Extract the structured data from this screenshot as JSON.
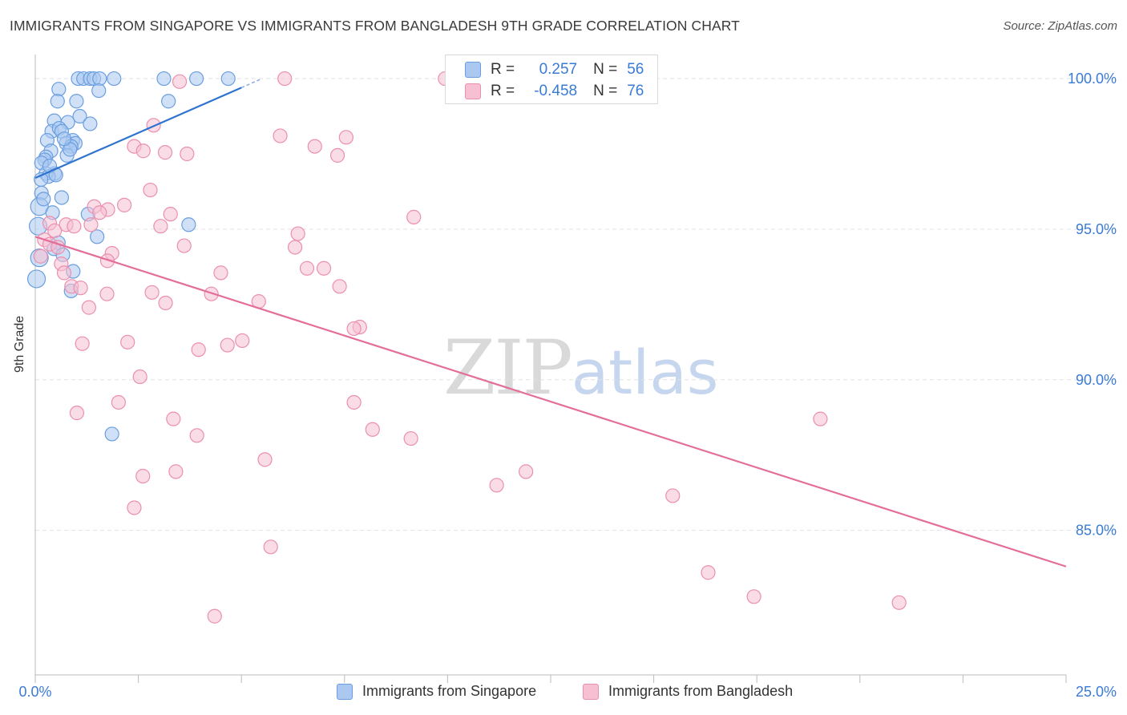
{
  "title": "IMMIGRANTS FROM SINGAPORE VS IMMIGRANTS FROM BANGLADESH 9TH GRADE CORRELATION CHART",
  "source": "Source: ZipAtlas.com",
  "watermark": {
    "zip": "ZIP",
    "atlas": "atlas"
  },
  "legend_stats": [
    {
      "r_label": "R =",
      "r_value": "0.257",
      "n_label": "N =",
      "n_value": "56"
    },
    {
      "r_label": "R =",
      "r_value": "-0.458",
      "n_label": "N =",
      "n_value": "76"
    }
  ],
  "chart_data": {
    "type": "scatter",
    "title": "IMMIGRANTS FROM SINGAPORE VS IMMIGRANTS FROM BANGLADESH 9TH GRADE CORRELATION CHART",
    "xlabel": "",
    "ylabel": "9th Grade",
    "xlim": [
      0,
      25
    ],
    "ylim": [
      80.2,
      100.8
    ],
    "x_tick_labels": [
      "0.0%",
      "25.0%"
    ],
    "y_ticks": [
      85,
      90,
      95,
      100
    ],
    "y_tick_labels": [
      "85.0%",
      "90.0%",
      "95.0%",
      "100.0%"
    ],
    "colors": {
      "singapore_fill": "#aac8f0",
      "singapore_stroke": "#6a9ee0",
      "singapore_line": "#2f73d0",
      "bangladesh_fill": "#f6c0d2",
      "bangladesh_stroke": "#eb8fae",
      "bangladesh_line": "#e36e99",
      "tick_label": "#3a7bd5",
      "grid": "#e2e2e2"
    },
    "series": [
      {
        "name": "Immigrants from Singapore",
        "r": 0.257,
        "n": 56,
        "trend": {
          "x": [
            0.0,
            5.0
          ],
          "y": [
            96.7,
            99.7
          ],
          "dash_x": [
            5.0,
            5.5
          ],
          "dash_y": [
            99.7,
            100.0
          ]
        },
        "points": [
          [
            1.04,
            100.0
          ],
          [
            1.17,
            100.0
          ],
          [
            1.33,
            100.0
          ],
          [
            1.42,
            100.0
          ],
          [
            1.56,
            100.0
          ],
          [
            1.91,
            100.0
          ],
          [
            3.12,
            100.0
          ],
          [
            3.91,
            100.0
          ],
          [
            4.68,
            100.0
          ],
          [
            1.54,
            99.6
          ],
          [
            0.57,
            99.65
          ],
          [
            0.54,
            99.25
          ],
          [
            1.0,
            99.25
          ],
          [
            3.23,
            99.25
          ],
          [
            1.08,
            98.75
          ],
          [
            0.46,
            98.6
          ],
          [
            0.79,
            98.55
          ],
          [
            1.33,
            98.5
          ],
          [
            0.4,
            98.25
          ],
          [
            0.29,
            97.95
          ],
          [
            0.91,
            97.95
          ],
          [
            0.58,
            98.35
          ],
          [
            0.64,
            98.25
          ],
          [
            0.75,
            97.85
          ],
          [
            0.97,
            97.85
          ],
          [
            0.87,
            97.75
          ],
          [
            0.38,
            97.6
          ],
          [
            0.77,
            97.45
          ],
          [
            0.84,
            97.65
          ],
          [
            0.26,
            97.4
          ],
          [
            0.23,
            97.3
          ],
          [
            0.15,
            97.2
          ],
          [
            0.47,
            96.85
          ],
          [
            0.26,
            96.85
          ],
          [
            0.32,
            96.75
          ],
          [
            0.14,
            96.65
          ],
          [
            0.15,
            96.2
          ],
          [
            0.64,
            96.05
          ],
          [
            0.1,
            95.75
          ],
          [
            0.42,
            95.55
          ],
          [
            1.28,
            95.5
          ],
          [
            3.72,
            95.15
          ],
          [
            1.5,
            94.75
          ],
          [
            0.07,
            95.1
          ],
          [
            0.56,
            94.55
          ],
          [
            0.45,
            94.35
          ],
          [
            0.67,
            94.15
          ],
          [
            0.1,
            94.05
          ],
          [
            0.92,
            93.6
          ],
          [
            0.03,
            93.35
          ],
          [
            0.87,
            92.95
          ],
          [
            1.86,
            88.2
          ],
          [
            0.7,
            98.0
          ],
          [
            0.35,
            97.1
          ],
          [
            0.2,
            96.0
          ],
          [
            0.5,
            96.8
          ]
        ]
      },
      {
        "name": "Immigrants from Bangladesh",
        "r": -0.458,
        "n": 76,
        "trend": {
          "x": [
            0.0,
            25.0
          ],
          "y": [
            94.75,
            83.8
          ]
        },
        "points": [
          [
            6.05,
            100.0
          ],
          [
            9.94,
            100.0
          ],
          [
            3.5,
            99.9
          ],
          [
            2.87,
            98.45
          ],
          [
            5.94,
            98.1
          ],
          [
            7.54,
            98.05
          ],
          [
            2.4,
            97.75
          ],
          [
            6.78,
            97.75
          ],
          [
            2.62,
            97.6
          ],
          [
            3.68,
            97.5
          ],
          [
            7.33,
            97.45
          ],
          [
            3.15,
            97.55
          ],
          [
            2.79,
            96.3
          ],
          [
            1.43,
            95.75
          ],
          [
            2.16,
            95.8
          ],
          [
            1.76,
            95.65
          ],
          [
            3.28,
            95.5
          ],
          [
            1.56,
            95.55
          ],
          [
            0.35,
            95.2
          ],
          [
            0.75,
            95.15
          ],
          [
            0.94,
            95.1
          ],
          [
            1.35,
            95.15
          ],
          [
            0.47,
            94.95
          ],
          [
            6.37,
            94.85
          ],
          [
            3.04,
            95.1
          ],
          [
            9.18,
            95.4
          ],
          [
            0.22,
            94.65
          ],
          [
            0.35,
            94.5
          ],
          [
            0.55,
            94.4
          ],
          [
            1.86,
            94.2
          ],
          [
            3.61,
            94.45
          ],
          [
            6.3,
            94.4
          ],
          [
            0.13,
            94.1
          ],
          [
            1.75,
            93.95
          ],
          [
            0.63,
            93.85
          ],
          [
            0.7,
            93.55
          ],
          [
            4.5,
            93.55
          ],
          [
            6.59,
            93.7
          ],
          [
            7.0,
            93.7
          ],
          [
            0.88,
            93.1
          ],
          [
            1.1,
            93.05
          ],
          [
            1.74,
            92.85
          ],
          [
            4.27,
            92.85
          ],
          [
            5.42,
            92.6
          ],
          [
            2.83,
            92.9
          ],
          [
            3.16,
            92.55
          ],
          [
            1.3,
            92.4
          ],
          [
            7.38,
            93.1
          ],
          [
            7.87,
            91.75
          ],
          [
            7.73,
            91.7
          ],
          [
            1.14,
            91.2
          ],
          [
            2.24,
            91.25
          ],
          [
            5.02,
            91.3
          ],
          [
            3.96,
            91.0
          ],
          [
            4.66,
            91.15
          ],
          [
            2.54,
            90.1
          ],
          [
            1.01,
            88.9
          ],
          [
            2.02,
            89.25
          ],
          [
            7.73,
            89.25
          ],
          [
            3.35,
            88.7
          ],
          [
            8.18,
            88.35
          ],
          [
            9.11,
            88.05
          ],
          [
            3.92,
            88.15
          ],
          [
            5.57,
            87.35
          ],
          [
            3.41,
            86.95
          ],
          [
            2.61,
            86.8
          ],
          [
            11.19,
            86.5
          ],
          [
            11.9,
            86.95
          ],
          [
            15.46,
            86.15
          ],
          [
            19.04,
            88.7
          ],
          [
            2.4,
            85.75
          ],
          [
            5.71,
            84.45
          ],
          [
            16.32,
            83.6
          ],
          [
            17.43,
            82.8
          ],
          [
            20.95,
            82.6
          ],
          [
            4.35,
            82.15
          ]
        ]
      }
    ]
  },
  "bottom_legend": [
    "Immigrants from Singapore",
    "Immigrants from Bangladesh"
  ]
}
